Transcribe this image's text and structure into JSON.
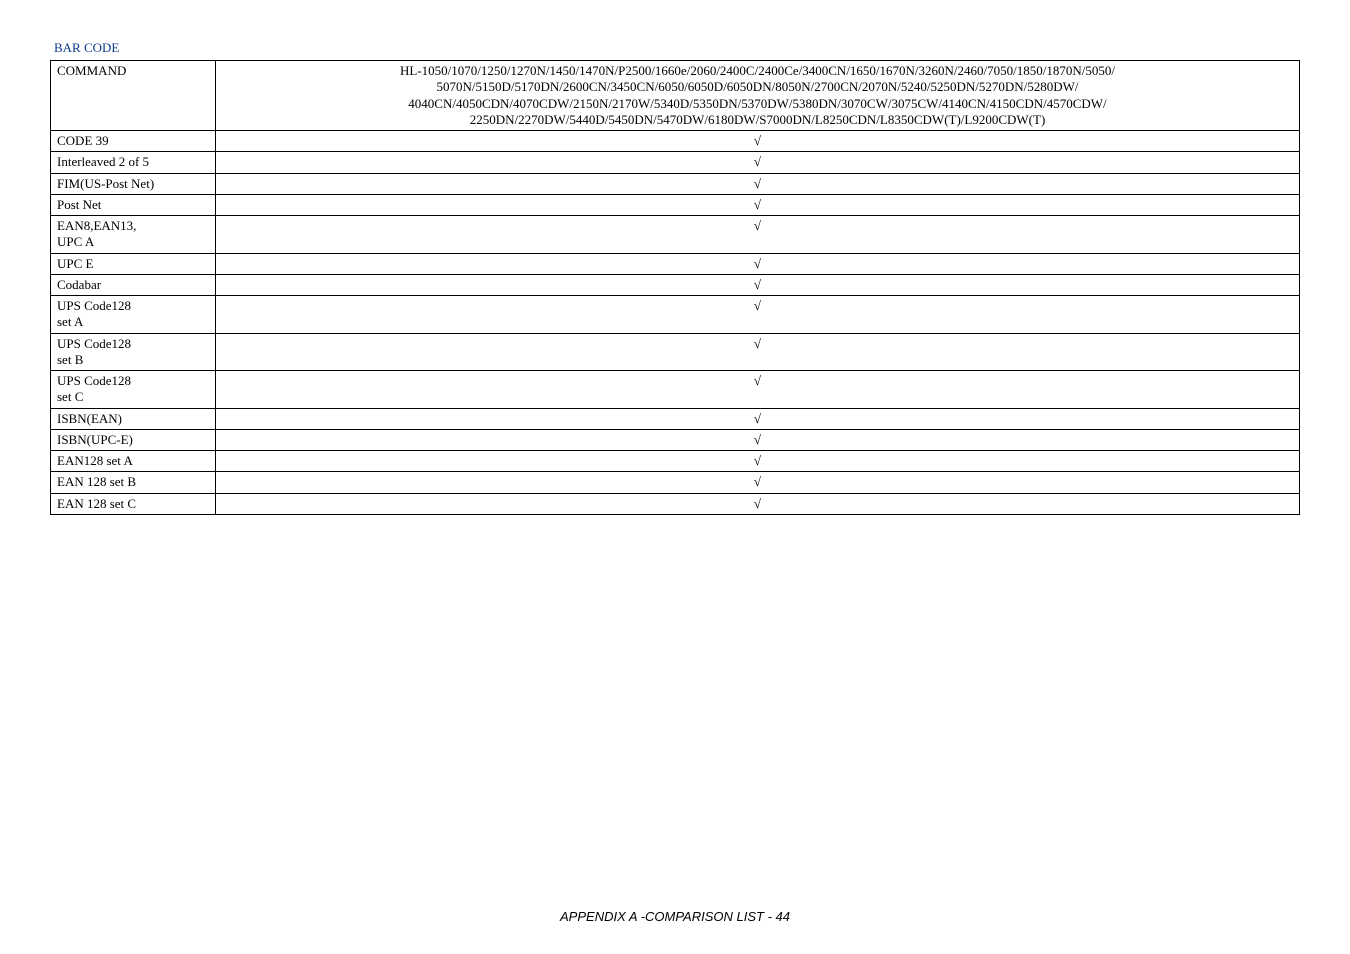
{
  "header": "BAR CODE",
  "command_label": "COMMAND",
  "model_lines": [
    "HL-1050/1070/1250/1270N/1450/1470N/P2500/1660e/2060/2400C/2400Ce/3400CN/1650/1670N/3260N/2460/7050/1850/1870N/5050/",
    "5070N/5150D/5170DN/2600CN/3450CN/6050/6050D/6050DN/8050N/2700CN/2070N/5240/5250DN/5270DN/5280DW/",
    "4040CN/4050CDN/4070CDW/2150N/2170W/5340D/5350DN/5370DW/5380DN/3070CW/3075CW/4140CN/4150CDN/4570CDW/",
    "2250DN/2270DW/5440D/5450DN/5470DW/6180DW/S7000DN/L8250CDN/L8350CDW(T)/L9200CDW(T)"
  ],
  "check": "√",
  "rows": [
    {
      "name": "CODE 39"
    },
    {
      "name": "Interleaved 2 of 5"
    },
    {
      "name": "FIM(US-Post Net)"
    },
    {
      "name": "Post Net"
    },
    {
      "name": "EAN8,EAN13,\nUPC A"
    },
    {
      "name": "UPC E"
    },
    {
      "name": "Codabar"
    },
    {
      "name": "UPS Code128\nset A"
    },
    {
      "name": "UPS Code128\nset B"
    },
    {
      "name": "UPS Code128\nset C"
    },
    {
      "name": "ISBN(EAN)"
    },
    {
      "name": "ISBN(UPC-E)"
    },
    {
      "name": "EAN128 set A"
    },
    {
      "name": "EAN 128 set B"
    },
    {
      "name": "EAN 128 set C"
    }
  ],
  "footer": "APPENDIX A -COMPARISON LIST - 44",
  "colors": {
    "header_text": "#0a3a8a",
    "border": "#000000",
    "text": "#000000",
    "background": "#ffffff"
  },
  "fonts": {
    "body_family": "Times New Roman",
    "body_size_pt": 10,
    "footer_family": "Arial",
    "footer_style": "italic"
  }
}
